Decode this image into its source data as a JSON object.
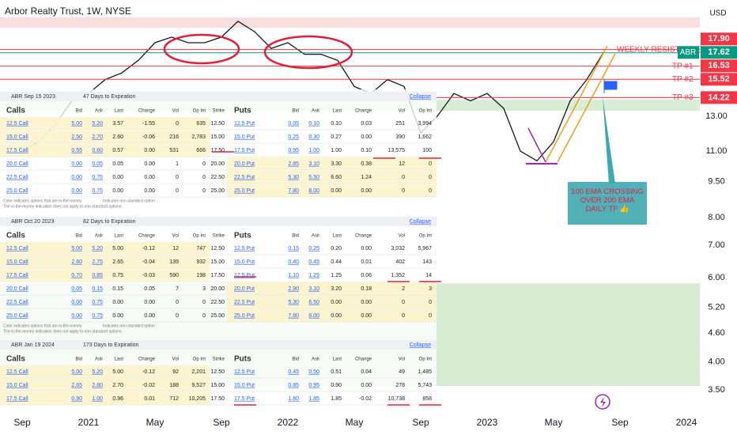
{
  "chart": {
    "type": "line",
    "title": "Arbor Realty Trust, 1W, NYSE",
    "currency": "USD",
    "symbol": "ABR",
    "log_scale": true,
    "color": "#131722",
    "ylim": [
      3.16,
      22.7
    ],
    "yticks": [
      {
        "value": 13,
        "label": "13.00"
      },
      {
        "value": 11,
        "label": "11.00"
      },
      {
        "value": 9.5,
        "label": "9.50"
      },
      {
        "value": 8,
        "label": "8.00"
      },
      {
        "value": 7,
        "label": "7.00"
      },
      {
        "value": 6,
        "label": "6.00"
      },
      {
        "value": 5.2,
        "label": "5.20"
      },
      {
        "value": 4.6,
        "label": "4.60"
      },
      {
        "value": 4,
        "label": "4.00"
      },
      {
        "value": 3.5,
        "label": "3.50"
      }
    ],
    "time_labels": [
      "Sep",
      "2021",
      "May",
      "Sep",
      "2022",
      "May",
      "Sep",
      "2023",
      "May",
      "Sep",
      "2024"
    ],
    "values": [
      11.0,
      11.5,
      12.5,
      14.0,
      14.5,
      15.5,
      16.0,
      17.0,
      18.5,
      19.0,
      18.5,
      18.5,
      19.0,
      20.5,
      19.5,
      18.0,
      18.5,
      17.5,
      17.5,
      17.0,
      15.0,
      14.5,
      15.5,
      15.0,
      12.0,
      13.0,
      14.5,
      14.0,
      14.5,
      13.5,
      11.0,
      10.5,
      11.5,
      14.0,
      15.5,
      17.62
    ],
    "levels": [
      {
        "value": 17.9,
        "label": "17.90",
        "note": "WEEKLY RESISTANCE",
        "color": "#f23645"
      },
      {
        "value": 17.62,
        "label": "17.62",
        "color": "#089981"
      },
      {
        "value": 16.53,
        "label": "16.53",
        "note": "TP #1",
        "color": "#f23645"
      },
      {
        "value": 15.52,
        "label": "15.52",
        "note": "TP #2",
        "color": "#f23645"
      },
      {
        "value": 14.22,
        "label": "14.22",
        "note": "TP #3",
        "color": "#f23645"
      }
    ],
    "callout": "100 EMA CROSSING OVER 200 EMA DAILY TF 👍"
  },
  "options_chain": {
    "columns": [
      "Calls",
      "Bid",
      "Ask",
      "Last",
      "Change",
      "Vol",
      "Op Int",
      "Strike",
      "Puts",
      "Bid",
      "Ask",
      "Last",
      "Change",
      "Vol",
      "Op Int"
    ],
    "collapse": "Collapse",
    "notes": [
      "Color indicates options that are in-the-money",
      "Indicates non-standard option",
      "The in-the-money indication does not apply to non-standard options."
    ],
    "sections": [
      {
        "expiry": "ABR Sep 15 2023",
        "days": "47 Days to Expiration",
        "rows": [
          [
            "12.5 Call",
            "5.00",
            "5.20",
            "3.57",
            "-1.55",
            "0",
            "635",
            "12.50",
            "12.5 Put",
            "0.05",
            "0.10",
            "0.10",
            "0.03",
            "251",
            "3,994"
          ],
          [
            "15.0 Call",
            "2.50",
            "2.70",
            "2.60",
            "-0.06",
            "216",
            "2,783",
            "15.00",
            "15.0 Put",
            "0.25",
            "0.30",
            "0.27",
            "0.00",
            "390",
            "1,662"
          ],
          [
            "17.5 Call",
            "0.55",
            "0.60",
            "0.57",
            "0.00",
            "531",
            "666",
            "17.50",
            "17.5 Put",
            "0.95",
            "1.00",
            "1.00",
            "0.10",
            "13,575",
            "100"
          ],
          [
            "20.0 Call",
            "0.00",
            "0.05",
            "0.05",
            "0.00",
            "1",
            "0",
            "20.00",
            "20.0 Put",
            "2.85",
            "3.10",
            "3.30",
            "0.38",
            "12",
            "0"
          ],
          [
            "22.5 Call",
            "0.00",
            "0.75",
            "0.00",
            "0.00",
            "0",
            "0",
            "22.50",
            "22.5 Put",
            "5.30",
            "5.50",
            "6.60",
            "1.24",
            "0",
            "0"
          ],
          [
            "25.0 Call",
            "0.00",
            "0.75",
            "0.00",
            "0.00",
            "0",
            "0",
            "25.00",
            "25.0 Put",
            "7.80",
            "8.00",
            "0.00",
            "0.00",
            "0",
            "0"
          ]
        ]
      },
      {
        "expiry": "ABR Oct 20 2023",
        "days": "82 Days to Expiration",
        "rows": [
          [
            "12.5 Call",
            "5.00",
            "5.20",
            "5.00",
            "-0.12",
            "12",
            "747",
            "12.50",
            "12.5 Put",
            "0.15",
            "0.25",
            "0.20",
            "0.00",
            "3,032",
            "5,967"
          ],
          [
            "15.0 Call",
            "2.60",
            "2.75",
            "2.65",
            "-0.04",
            "139",
            "932",
            "15.00",
            "15.0 Put",
            "0.40",
            "0.45",
            "0.44",
            "0.01",
            "402",
            "143"
          ],
          [
            "17.5 Call",
            "0.70",
            "0.85",
            "0.75",
            "-0.03",
            "590",
            "198",
            "17.50",
            "17.5 Put",
            "1.10",
            "1.25",
            "1.25",
            "0.06",
            "1,352",
            "14"
          ],
          [
            "20.0 Call",
            "0.05",
            "0.15",
            "0.15",
            "0.05",
            "7",
            "3",
            "20.00",
            "20.0 Put",
            "2.90",
            "3.10",
            "3.20",
            "0.18",
            "2",
            "3"
          ],
          [
            "22.5 Call",
            "0.00",
            "0.75",
            "0.00",
            "0.00",
            "0",
            "0",
            "22.50",
            "22.5 Put",
            "5.30",
            "6.50",
            "0.00",
            "0.00",
            "0",
            "0"
          ],
          [
            "25.0 Call",
            "0.00",
            "0.75",
            "0.00",
            "0.00",
            "0",
            "0",
            "25.00",
            "25.0 Put",
            "7.80",
            "8.00",
            "0.00",
            "0.00",
            "0",
            "0"
          ]
        ]
      },
      {
        "expiry": "ABR Jan 19 2024",
        "days": "173 Days to Expiration",
        "rows": [
          [
            "12.5 Call",
            "5.00",
            "5.20",
            "5.00",
            "-0.12",
            "92",
            "2,201",
            "12.50",
            "12.5 Put",
            "0.45",
            "0.50",
            "0.51",
            "0.04",
            "49",
            "1,485"
          ],
          [
            "15.0 Call",
            "2.65",
            "2.80",
            "2.70",
            "-0.02",
            "188",
            "9,527",
            "15.00",
            "15.0 Put",
            "0.85",
            "0.95",
            "0.90",
            "0.00",
            "278",
            "5,743"
          ],
          [
            "17.5 Call",
            "0.90",
            "1.00",
            "0.96",
            "0.01",
            "712",
            "10,205",
            "17.50",
            "17.5 Put",
            "1.80",
            "1.85",
            "1.85",
            "-0.02",
            "10,738",
            "858"
          ]
        ]
      }
    ]
  }
}
